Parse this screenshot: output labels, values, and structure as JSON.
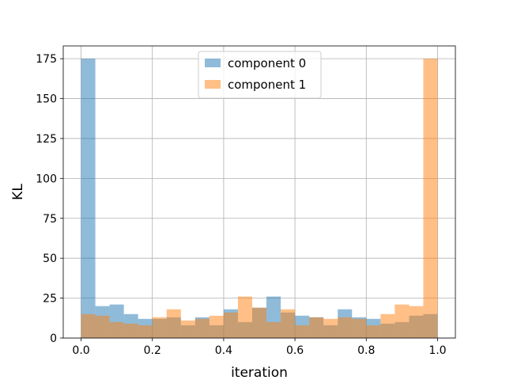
{
  "chart_data": {
    "type": "bar",
    "subtype": "overlapping-histogram",
    "title": "",
    "xlabel": "iteration",
    "ylabel": "KL",
    "xlim": [
      -0.05,
      1.05
    ],
    "ylim": [
      0,
      183
    ],
    "xticks": [
      0.0,
      0.2,
      0.4,
      0.6,
      0.8,
      1.0
    ],
    "xtick_labels": [
      "0.0",
      "0.2",
      "0.4",
      "0.6",
      "0.8",
      "1.0"
    ],
    "yticks": [
      0,
      25,
      50,
      75,
      100,
      125,
      150,
      175
    ],
    "ytick_labels": [
      "0",
      "25",
      "50",
      "75",
      "100",
      "125",
      "150",
      "175"
    ],
    "grid": true,
    "legend_position": "top-center",
    "bin_edges": [
      0.0,
      0.04,
      0.08,
      0.12,
      0.16,
      0.2,
      0.24,
      0.28,
      0.32,
      0.36,
      0.4,
      0.44,
      0.48,
      0.52,
      0.56,
      0.6,
      0.64,
      0.68,
      0.72,
      0.76,
      0.8,
      0.84,
      0.88,
      0.92,
      0.96,
      1.0
    ],
    "series": [
      {
        "name": "component 0",
        "color": "#1f77b4",
        "alpha": 0.5,
        "values": [
          175,
          20,
          21,
          15,
          12,
          12,
          13,
          8,
          13,
          8,
          18,
          10,
          19,
          26,
          16,
          14,
          13,
          8,
          18,
          13,
          12,
          9,
          10,
          14,
          15
        ]
      },
      {
        "name": "component 1",
        "color": "#ff7f0e",
        "alpha": 0.5,
        "values": [
          15,
          14,
          10,
          9,
          8,
          13,
          18,
          11,
          12,
          14,
          16,
          26,
          19,
          10,
          18,
          8,
          13,
          12,
          13,
          12,
          8,
          15,
          21,
          20,
          175
        ]
      }
    ]
  }
}
